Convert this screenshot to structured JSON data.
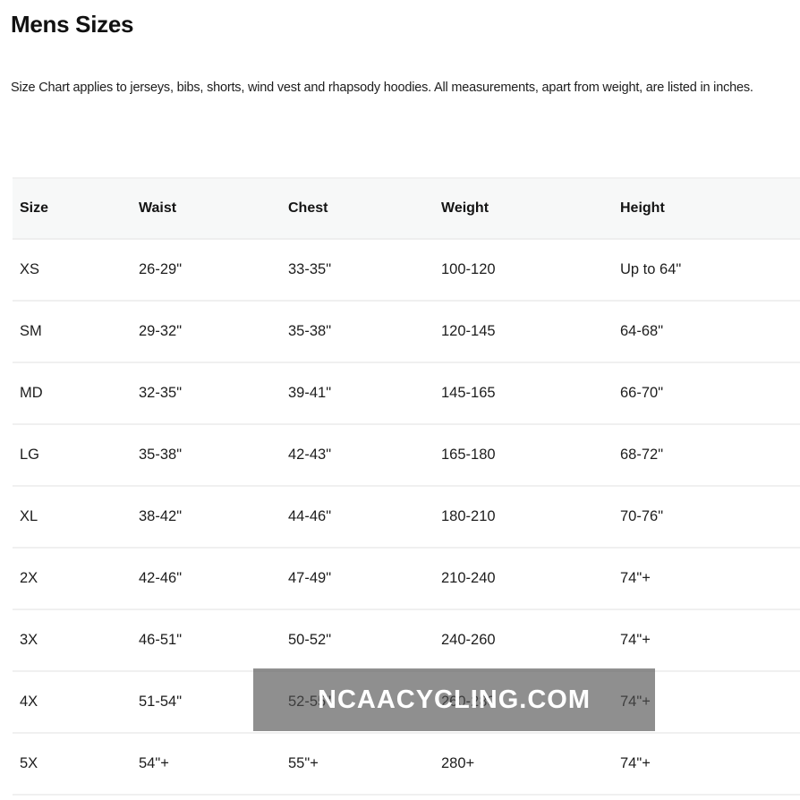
{
  "page": {
    "title": "Mens Sizes",
    "description": "Size Chart applies to jerseys, bibs, shorts, wind vest and rhapsody hoodies. All measurements, apart from weight, are listed in inches."
  },
  "table": {
    "columns": [
      "Size",
      "Waist",
      "Chest",
      "Weight",
      "Height"
    ],
    "rows": [
      {
        "size": "XS",
        "waist": "26-29\"",
        "chest": "33-35\"",
        "weight": "100-120",
        "height": "Up to 64\""
      },
      {
        "size": "SM",
        "waist": "29-32\"",
        "chest": "35-38\"",
        "weight": "120-145",
        "height": "64-68\""
      },
      {
        "size": "MD",
        "waist": "32-35\"",
        "chest": "39-41\"",
        "weight": "145-165",
        "height": "66-70\""
      },
      {
        "size": "LG",
        "waist": "35-38\"",
        "chest": "42-43\"",
        "weight": "165-180",
        "height": "68-72\""
      },
      {
        "size": "XL",
        "waist": "38-42\"",
        "chest": "44-46\"",
        "weight": "180-210",
        "height": "70-76\""
      },
      {
        "size": "2X",
        "waist": "42-46\"",
        "chest": "47-49\"",
        "weight": "210-240",
        "height": "74\"+"
      },
      {
        "size": "3X",
        "waist": "46-51\"",
        "chest": "50-52\"",
        "weight": "240-260",
        "height": "74\"+"
      },
      {
        "size": "4X",
        "waist": "51-54\"",
        "chest": "52-55\"",
        "weight": "260-280",
        "height": "74\"+"
      },
      {
        "size": "5X",
        "waist": "54\"+",
        "chest": "55\"+",
        "weight": "280+",
        "height": "74\"+"
      }
    ]
  },
  "watermark": {
    "text": "NCAACYCLING.COM",
    "overlay_background": "rgba(80,80,80,0.64)",
    "text_color": "#ffffff"
  },
  "colors": {
    "text_color": "#1d1d1d",
    "header_bg": "#f7f8f8",
    "border_color": "#eeeeee"
  }
}
